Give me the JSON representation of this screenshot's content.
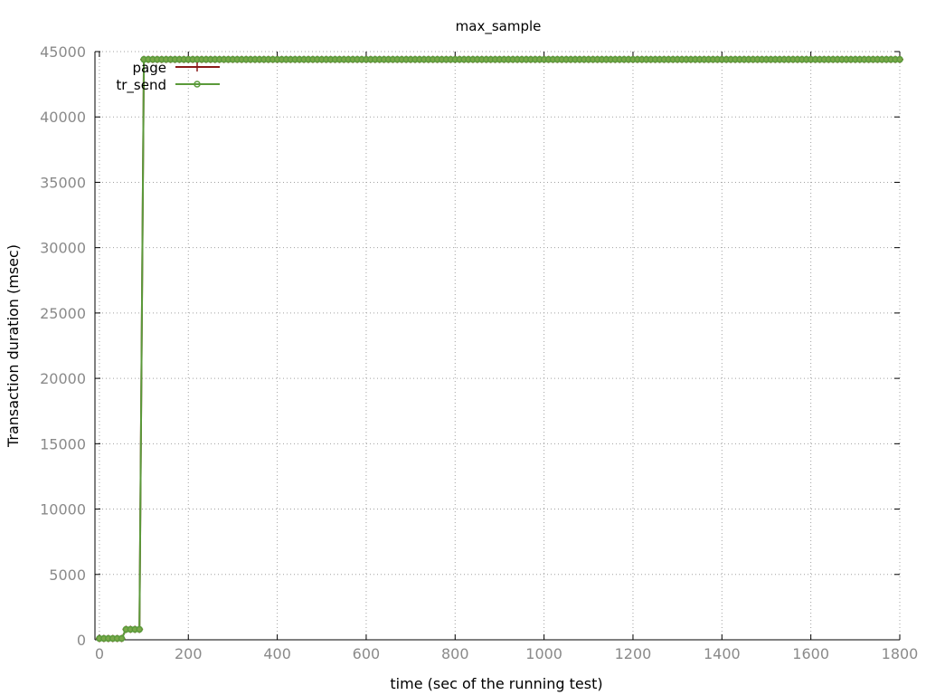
{
  "chart_data": {
    "type": "line",
    "title": "max_sample",
    "xlabel": "time (sec of the running test)",
    "ylabel": "Transaction duration (msec)",
    "xlim": [
      -10,
      1800
    ],
    "ylim": [
      0,
      45000
    ],
    "xticks": [
      0,
      200,
      400,
      600,
      800,
      1000,
      1200,
      1400,
      1600,
      1800
    ],
    "yticks": [
      0,
      5000,
      10000,
      15000,
      20000,
      25000,
      30000,
      35000,
      40000,
      45000
    ],
    "grid": true,
    "legend_position": "top-left",
    "series": [
      {
        "name": "page",
        "color": "#8b1a1a",
        "marker": "plus",
        "x": [
          0,
          10,
          20,
          30,
          40,
          50,
          60,
          70,
          80,
          90,
          100,
          1800
        ],
        "y": [
          100,
          100,
          100,
          100,
          100,
          100,
          800,
          800,
          800,
          800,
          44400,
          44400
        ]
      },
      {
        "name": "tr_send",
        "color": "#5a9a3a",
        "marker": "circle",
        "x": [
          0,
          10,
          20,
          30,
          40,
          50,
          60,
          70,
          80,
          90,
          100,
          1800
        ],
        "y": [
          100,
          100,
          100,
          100,
          100,
          100,
          800,
          800,
          800,
          800,
          44400,
          44400
        ]
      }
    ]
  }
}
